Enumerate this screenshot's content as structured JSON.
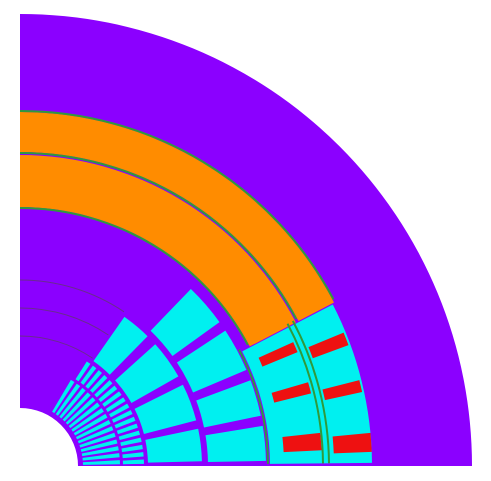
{
  "colors": {
    "background": "#ffffff",
    "iron": "#8b00ff",
    "insulation": "#ff8c00",
    "coil": "#00f0f0",
    "accent": "#ee1111",
    "outline": "#2f9a3c",
    "division": "#6b2b8f"
  }
}
